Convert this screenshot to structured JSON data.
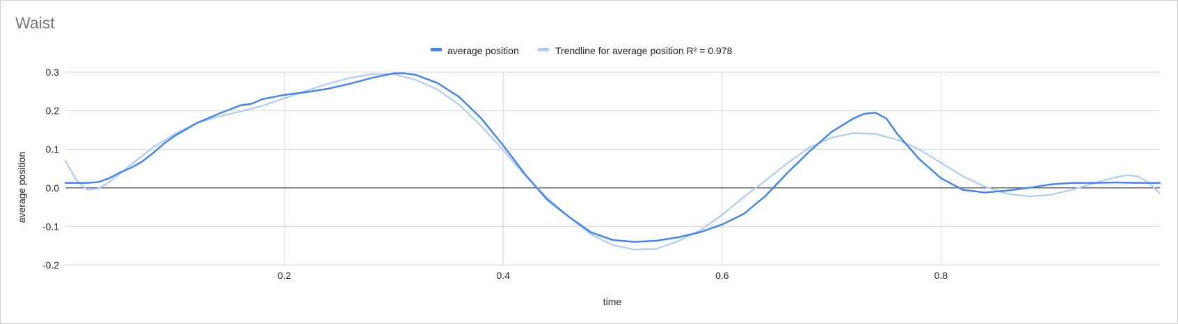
{
  "chart_data": {
    "type": "line",
    "title": "Waist",
    "xlabel": "time",
    "ylabel": "average position",
    "xlim": [
      0,
      1
    ],
    "ylim": [
      -0.2,
      0.3
    ],
    "x_ticks": [
      0.2,
      0.4,
      0.6,
      0.8
    ],
    "x_tick_labels": [
      "0.2",
      "0.4",
      "0.6",
      "0.8"
    ],
    "y_ticks": [
      -0.2,
      -0.1,
      0.0,
      0.1,
      0.2,
      0.3
    ],
    "y_tick_labels": [
      "-0.2",
      "-0.1",
      "0.0",
      "0.1",
      "0.2",
      "0.3"
    ],
    "grid": true,
    "legend_position": "top",
    "series": [
      {
        "name": "average position",
        "color": "#4285f4",
        "points": [
          [
            0.0,
            0.013
          ],
          [
            0.02,
            0.013
          ],
          [
            0.03,
            0.015
          ],
          [
            0.04,
            0.025
          ],
          [
            0.05,
            0.04
          ],
          [
            0.06,
            0.052
          ],
          [
            0.07,
            0.068
          ],
          [
            0.08,
            0.09
          ],
          [
            0.09,
            0.115
          ],
          [
            0.1,
            0.135
          ],
          [
            0.12,
            0.168
          ],
          [
            0.14,
            0.192
          ],
          [
            0.16,
            0.214
          ],
          [
            0.17,
            0.218
          ],
          [
            0.18,
            0.23
          ],
          [
            0.2,
            0.241
          ],
          [
            0.22,
            0.248
          ],
          [
            0.24,
            0.257
          ],
          [
            0.26,
            0.27
          ],
          [
            0.28,
            0.285
          ],
          [
            0.3,
            0.297
          ],
          [
            0.31,
            0.297
          ],
          [
            0.32,
            0.293
          ],
          [
            0.34,
            0.272
          ],
          [
            0.36,
            0.235
          ],
          [
            0.38,
            0.18
          ],
          [
            0.4,
            0.11
          ],
          [
            0.42,
            0.035
          ],
          [
            0.44,
            -0.03
          ],
          [
            0.46,
            -0.075
          ],
          [
            0.48,
            -0.115
          ],
          [
            0.5,
            -0.135
          ],
          [
            0.52,
            -0.14
          ],
          [
            0.54,
            -0.137
          ],
          [
            0.56,
            -0.128
          ],
          [
            0.58,
            -0.115
          ],
          [
            0.6,
            -0.095
          ],
          [
            0.62,
            -0.067
          ],
          [
            0.64,
            -0.02
          ],
          [
            0.66,
            0.04
          ],
          [
            0.68,
            0.095
          ],
          [
            0.7,
            0.145
          ],
          [
            0.72,
            0.18
          ],
          [
            0.73,
            0.192
          ],
          [
            0.74,
            0.195
          ],
          [
            0.75,
            0.18
          ],
          [
            0.76,
            0.14
          ],
          [
            0.78,
            0.075
          ],
          [
            0.8,
            0.025
          ],
          [
            0.82,
            -0.005
          ],
          [
            0.84,
            -0.012
          ],
          [
            0.86,
            -0.007
          ],
          [
            0.88,
            0.0
          ],
          [
            0.9,
            0.009
          ],
          [
            0.92,
            0.013
          ],
          [
            0.94,
            0.013
          ],
          [
            0.96,
            0.014
          ],
          [
            0.98,
            0.013
          ],
          [
            1.0,
            0.013
          ]
        ]
      },
      {
        "name": "Trendline for average position R² = 0.978",
        "color": "#aecbfa",
        "points": [
          [
            0.0,
            0.07
          ],
          [
            0.01,
            0.02
          ],
          [
            0.02,
            -0.005
          ],
          [
            0.03,
            -0.002
          ],
          [
            0.04,
            0.015
          ],
          [
            0.06,
            0.06
          ],
          [
            0.08,
            0.105
          ],
          [
            0.1,
            0.14
          ],
          [
            0.12,
            0.168
          ],
          [
            0.14,
            0.185
          ],
          [
            0.16,
            0.198
          ],
          [
            0.18,
            0.213
          ],
          [
            0.2,
            0.232
          ],
          [
            0.22,
            0.252
          ],
          [
            0.24,
            0.27
          ],
          [
            0.26,
            0.285
          ],
          [
            0.28,
            0.295
          ],
          [
            0.3,
            0.295
          ],
          [
            0.32,
            0.28
          ],
          [
            0.34,
            0.255
          ],
          [
            0.36,
            0.215
          ],
          [
            0.38,
            0.16
          ],
          [
            0.4,
            0.098
          ],
          [
            0.42,
            0.032
          ],
          [
            0.44,
            -0.025
          ],
          [
            0.46,
            -0.075
          ],
          [
            0.48,
            -0.12
          ],
          [
            0.5,
            -0.148
          ],
          [
            0.52,
            -0.16
          ],
          [
            0.54,
            -0.158
          ],
          [
            0.56,
            -0.138
          ],
          [
            0.58,
            -0.11
          ],
          [
            0.6,
            -0.07
          ],
          [
            0.62,
            -0.023
          ],
          [
            0.64,
            0.02
          ],
          [
            0.66,
            0.065
          ],
          [
            0.68,
            0.105
          ],
          [
            0.7,
            0.13
          ],
          [
            0.72,
            0.142
          ],
          [
            0.74,
            0.14
          ],
          [
            0.76,
            0.125
          ],
          [
            0.78,
            0.1
          ],
          [
            0.8,
            0.065
          ],
          [
            0.82,
            0.03
          ],
          [
            0.84,
            0.003
          ],
          [
            0.86,
            -0.015
          ],
          [
            0.88,
            -0.022
          ],
          [
            0.9,
            -0.018
          ],
          [
            0.92,
            -0.005
          ],
          [
            0.94,
            0.012
          ],
          [
            0.96,
            0.028
          ],
          [
            0.97,
            0.033
          ],
          [
            0.98,
            0.03
          ],
          [
            0.99,
            0.013
          ],
          [
            1.0,
            -0.015
          ]
        ]
      }
    ]
  }
}
